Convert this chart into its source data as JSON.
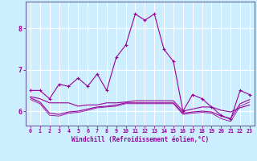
{
  "xlabel": "Windchill (Refroidissement éolien,°C)",
  "background_color": "#cceeff",
  "grid_color": "#ffffff",
  "line_color": "#990099",
  "spine_color": "#666699",
  "xlim": [
    -0.5,
    23.5
  ],
  "ylim": [
    5.65,
    8.65
  ],
  "xticks": [
    0,
    1,
    2,
    3,
    4,
    5,
    6,
    7,
    8,
    9,
    10,
    11,
    12,
    13,
    14,
    15,
    16,
    17,
    18,
    19,
    20,
    21,
    22,
    23
  ],
  "yticks": [
    6,
    7,
    8
  ],
  "hours": [
    0,
    1,
    2,
    3,
    4,
    5,
    6,
    7,
    8,
    9,
    10,
    11,
    12,
    13,
    14,
    15,
    16,
    17,
    18,
    19,
    20,
    21,
    22,
    23
  ],
  "line1": [
    6.5,
    6.5,
    6.3,
    6.65,
    6.6,
    6.8,
    6.6,
    6.9,
    6.5,
    7.3,
    7.6,
    8.35,
    8.2,
    8.35,
    7.5,
    7.2,
    6.0,
    6.4,
    6.3,
    6.1,
    5.9,
    5.8,
    6.5,
    6.4
  ],
  "line2": [
    6.35,
    6.3,
    6.2,
    6.2,
    6.2,
    6.12,
    6.15,
    6.15,
    6.2,
    6.2,
    6.22,
    6.25,
    6.25,
    6.25,
    6.25,
    6.25,
    6.0,
    6.05,
    6.1,
    6.1,
    6.02,
    5.98,
    6.08,
    6.15
  ],
  "line3": [
    6.32,
    6.22,
    5.95,
    5.92,
    5.98,
    6.0,
    6.05,
    6.1,
    6.12,
    6.15,
    6.2,
    6.2,
    6.2,
    6.2,
    6.2,
    6.2,
    5.95,
    5.98,
    6.0,
    5.98,
    5.88,
    5.82,
    6.18,
    6.28
  ],
  "line4": [
    6.28,
    6.18,
    5.9,
    5.88,
    5.95,
    5.97,
    6.02,
    6.08,
    6.1,
    6.12,
    6.18,
    6.18,
    6.18,
    6.18,
    6.18,
    6.18,
    5.92,
    5.95,
    5.97,
    5.95,
    5.82,
    5.75,
    6.12,
    6.22
  ]
}
